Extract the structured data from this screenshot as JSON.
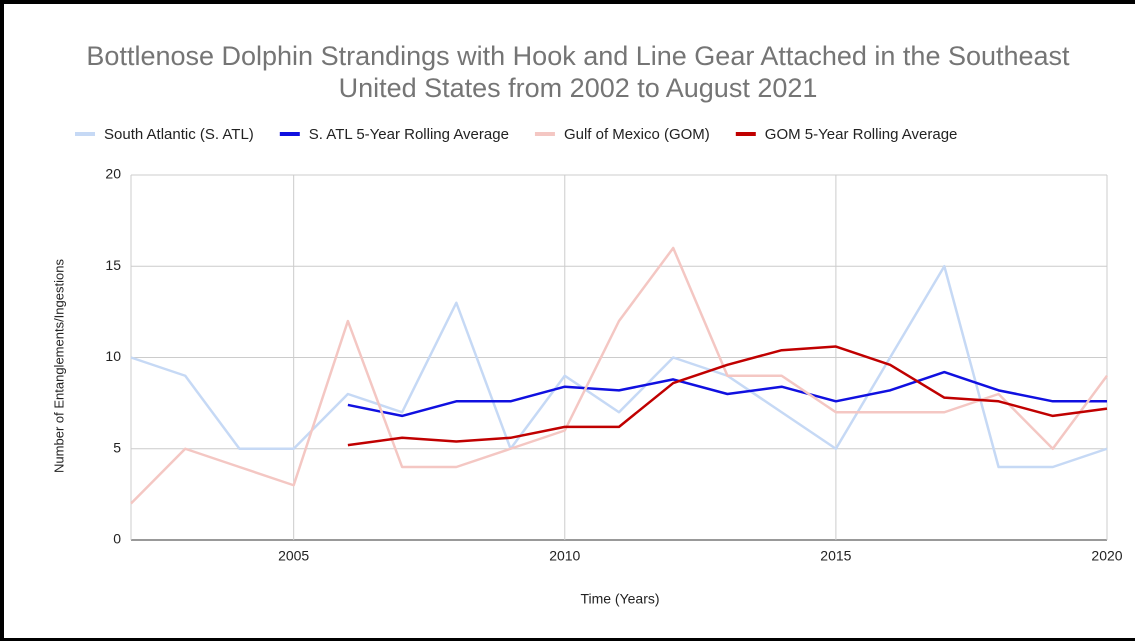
{
  "chart_data": {
    "type": "line",
    "title": "Bottlenose Dolphin Strandings with Hook and Line Gear Attached in the Southeast United States from 2002 to August 2021",
    "x_label": "Time (Years)",
    "y_label": "Number of Entanglements/Ingestions",
    "x": [
      2002,
      2003,
      2004,
      2005,
      2006,
      2007,
      2008,
      2009,
      2010,
      2011,
      2012,
      2013,
      2014,
      2015,
      2016,
      2017,
      2018,
      2019,
      2020
    ],
    "series": [
      {
        "name": "South Atlantic (S. ATL)",
        "color": "#c6d9f5",
        "values": [
          10,
          9,
          5,
          5,
          8,
          7,
          13,
          5,
          9,
          7,
          10,
          9,
          7,
          5,
          10,
          15,
          4,
          4,
          5
        ]
      },
      {
        "name": "S. ATL 5-Year Rolling Average",
        "color": "#1010e0",
        "values": [
          null,
          null,
          null,
          null,
          7.4,
          6.8,
          7.6,
          7.6,
          8.4,
          8.2,
          8.8,
          8.0,
          8.4,
          7.6,
          8.2,
          9.2,
          8.2,
          7.6,
          7.6
        ]
      },
      {
        "name": "Gulf of Mexico (GOM)",
        "color": "#f4c7c3",
        "values": [
          2,
          5,
          4,
          3,
          12,
          4,
          4,
          5,
          6,
          12,
          16,
          9,
          9,
          7,
          7,
          7,
          8,
          5,
          9
        ]
      },
      {
        "name": "GOM 5-Year Rolling Average",
        "color": "#c00000",
        "values": [
          null,
          null,
          null,
          null,
          5.2,
          5.6,
          5.4,
          5.6,
          6.2,
          6.2,
          8.6,
          9.6,
          10.4,
          10.6,
          9.6,
          7.8,
          7.6,
          6.8,
          7.2
        ]
      }
    ],
    "xlim": [
      2002,
      2020
    ],
    "xticks": [
      2005,
      2010,
      2015,
      2020
    ],
    "ylim": [
      0,
      20
    ],
    "yticks": [
      0,
      5,
      10,
      15,
      20
    ],
    "grid": true,
    "legend": "top"
  }
}
